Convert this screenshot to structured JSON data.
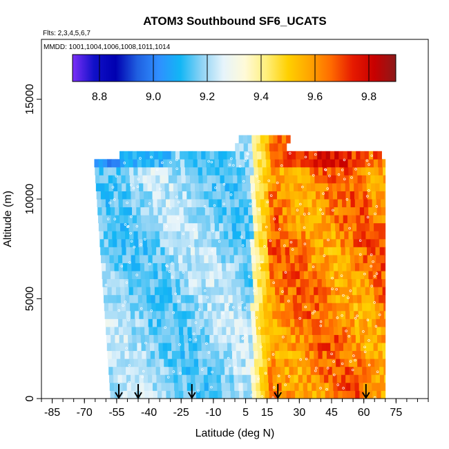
{
  "chart_data": {
    "type": "heatmap",
    "title": "ATOM3 Southbound SF6_UCATS",
    "flights_label": "Flts: 2,3,4,5,6,7",
    "dates_label": "MMDD: 1001,1004,1006,1008,1011,1014",
    "xlabel": "Latitude (deg N)",
    "ylabel": "Altitude (m)",
    "xlim": [
      -90,
      90
    ],
    "ylim": [
      0,
      18000
    ],
    "x_ticks": [
      -85,
      -70,
      -55,
      -40,
      -25,
      -10,
      5,
      15,
      30,
      45,
      60,
      75
    ],
    "y_ticks": [
      0,
      5000,
      10000,
      15000
    ],
    "colorbar": {
      "min": 8.7,
      "max": 9.9,
      "ticks": [
        8.8,
        9.0,
        9.2,
        9.4,
        9.6,
        9.8
      ],
      "colors": [
        "#7b2ff7",
        "#1010c8",
        "#0000b0",
        "#1f5fe0",
        "#2f8fff",
        "#12b6f5",
        "#8fd3f5",
        "#e6f4fb",
        "#fffad8",
        "#ffef7a",
        "#ffd000",
        "#ffa500",
        "#ff6a00",
        "#e61a00",
        "#c80000",
        "#8b1a1a"
      ]
    },
    "profiles": [
      {
        "lat_start": -62,
        "lat_end": 70,
        "alt_top": 12500,
        "base_value": 9.2
      },
      {
        "lat_start": -65,
        "lat_end": 70,
        "alt_top": 10000,
        "base_value": 9.3
      }
    ],
    "arrow_latitudes": [
      -54,
      -45,
      -20,
      20,
      61
    ]
  }
}
